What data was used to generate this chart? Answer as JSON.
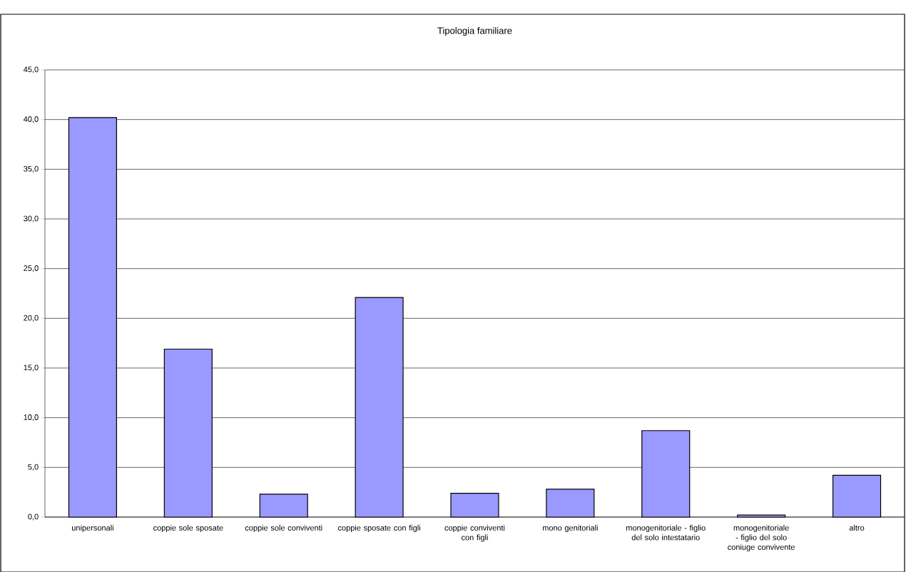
{
  "chart_data": {
    "type": "bar",
    "title": "Tipologia familiare",
    "categories": [
      "unipersonali",
      "coppie sole sposate",
      "coppie sole conviventi",
      "coppie sposate con figli",
      "coppie conviventi con figli",
      "mono genitoriali",
      "monogenitoriale - figlio del solo intestatario",
      "monogenitoriale - figlio del solo coniuge convivente",
      "altro"
    ],
    "values": [
      40.2,
      16.9,
      2.3,
      22.1,
      2.4,
      2.8,
      8.7,
      0.2,
      4.2
    ],
    "color": "#9999ff",
    "ylim": [
      0,
      45
    ],
    "yticks": [
      {
        "value": 0,
        "label": "0,0"
      },
      {
        "value": 5,
        "label": "5,0"
      },
      {
        "value": 10,
        "label": "10,0"
      },
      {
        "value": 15,
        "label": "15,0"
      },
      {
        "value": 20,
        "label": "20,0"
      },
      {
        "value": 25,
        "label": "25,0"
      },
      {
        "value": 30,
        "label": "30,0"
      },
      {
        "value": 35,
        "label": "35,0"
      },
      {
        "value": 40,
        "label": "40,0"
      },
      {
        "value": 45,
        "label": "45,0"
      }
    ],
    "grid": "y"
  }
}
